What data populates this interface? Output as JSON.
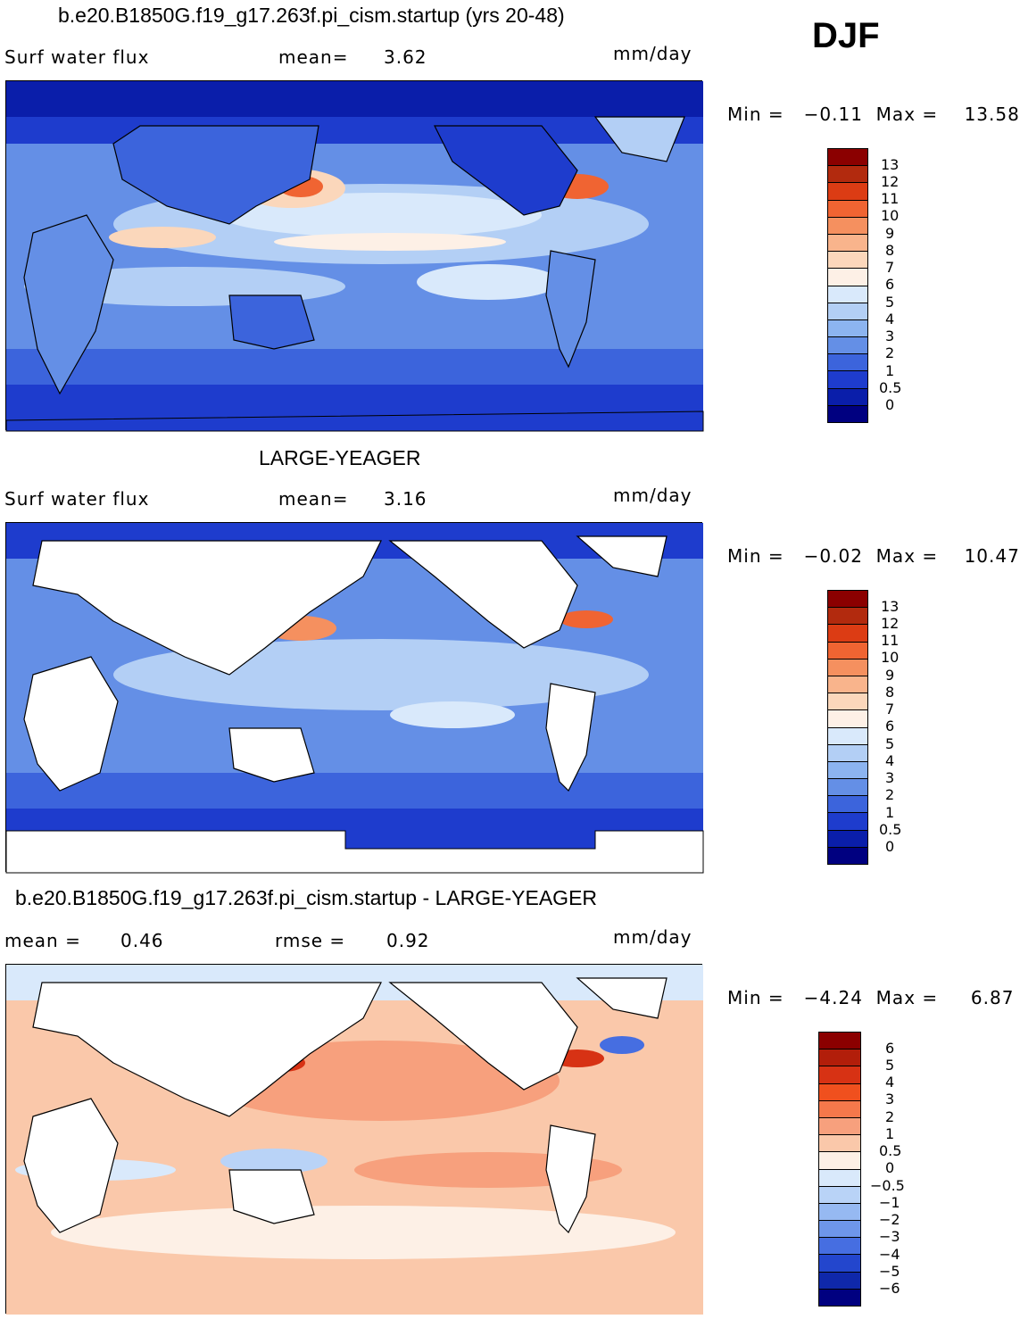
{
  "season": "DJF",
  "panels": [
    {
      "title": "b.e20.B1850G.f19_g17.263f.pi_cism.startup (yrs 20-48)",
      "field": "Surf  water flux",
      "stat1_label": "mean=",
      "stat1_value": "3.62",
      "stat2_label": "",
      "stat2_value": "",
      "units": "mm/day",
      "minmax": "Min =   −0.11  Max =    13.58",
      "colorbar_labels": [
        "13",
        "12",
        "11",
        "10",
        "9",
        "8",
        "7",
        "6",
        "5",
        "4",
        "3",
        "2",
        "1",
        "0.5",
        "0"
      ]
    },
    {
      "title": "LARGE-YEAGER",
      "field": "Surf  water flux",
      "stat1_label": "mean=",
      "stat1_value": "3.16",
      "stat2_label": "",
      "stat2_value": "",
      "units": "mm/day",
      "minmax": "Min =   −0.02  Max =    10.47",
      "colorbar_labels": [
        "13",
        "12",
        "11",
        "10",
        "9",
        "8",
        "7",
        "6",
        "5",
        "4",
        "3",
        "2",
        "1",
        "0.5",
        "0"
      ]
    },
    {
      "title": "b.e20.B1850G.f19_g17.263f.pi_cism.startup - LARGE-YEAGER",
      "field": "mean  =",
      "stat1_label": "",
      "stat1_value": "0.46",
      "stat2_label": "rmse  =",
      "stat2_value": "0.92",
      "units": "mm/day",
      "minmax": "Min =   −4.24  Max =     6.87",
      "colorbar_labels": [
        "6",
        "5",
        "4",
        "3",
        "2",
        "1",
        "0.5",
        "0",
        "−0.5",
        "−1",
        "−2",
        "−3",
        "−4",
        "−5",
        "−6"
      ]
    }
  ],
  "colors": {
    "abs_scale": [
      "#8b0000",
      "#b22a0e",
      "#dc3c14",
      "#f06432",
      "#f5905f",
      "#f9b48c",
      "#fbd7bb",
      "#fdf0e6",
      "#d9e9fb",
      "#b3cff5",
      "#8cb4f0",
      "#648fe6",
      "#3c64dc",
      "#1e3ccd",
      "#0a1eaa",
      "#000080"
    ],
    "diff_scale": [
      "#8b0000",
      "#b21e0a",
      "#d73214",
      "#f0501e",
      "#f5784b",
      "#f7a07d",
      "#fac8aa",
      "#fdf0e6",
      "#d9e9fb",
      "#b9d3f7",
      "#96b9f2",
      "#6e96ea",
      "#466ee1",
      "#2346cd",
      "#0f28aa",
      "#000080"
    ],
    "land_white": "#ffffff",
    "coastline": "#000000"
  }
}
